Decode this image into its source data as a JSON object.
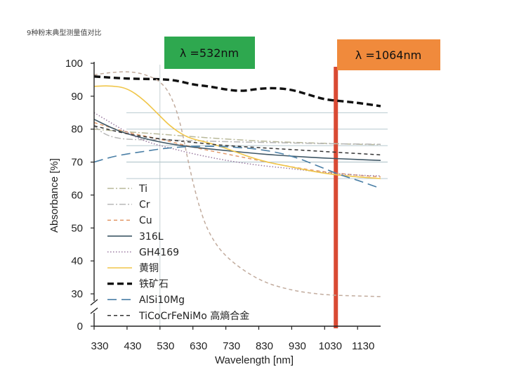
{
  "caption": "9种粉末典型测量值对比",
  "chart_data": {
    "type": "line",
    "xlabel": "Wavelength [nm]",
    "ylabel": "Absorbance [%]",
    "x_ticks": [
      330,
      430,
      530,
      630,
      730,
      830,
      930,
      1030,
      1130
    ],
    "y_ticks": [
      0,
      30,
      40,
      50,
      60,
      70,
      80,
      90,
      100
    ],
    "xlim": [
      330,
      1200
    ],
    "ylim": [
      0,
      100
    ],
    "axis_break": "between 0 and 30",
    "grid_y": [
      65,
      70,
      75,
      80,
      85
    ],
    "grid_x": [
      530
    ],
    "markers": [
      {
        "label": "λ =532nm",
        "wavelength": 532,
        "color": "#2ea84f"
      },
      {
        "label": "λ =1064nm",
        "wavelength": 1064,
        "color": "#d94a34",
        "badge_color": "#f08a3c"
      }
    ],
    "legend_position": "left-bottom",
    "series": [
      {
        "name": "Ti",
        "color": "#b9b99a",
        "style": "dashdot",
        "x": [
          330,
          430,
          530,
          630,
          730,
          830,
          930,
          1030,
          1130,
          1200
        ],
        "y": [
          80,
          79.2,
          78.5,
          77.7,
          77,
          76.4,
          76,
          75.7,
          75.4,
          75.3
        ]
      },
      {
        "name": "Cr",
        "color": "#b7b7b7",
        "style": "dashdot",
        "x": [
          330,
          360,
          400,
          450,
          530,
          630,
          730,
          830,
          930,
          1030,
          1130,
          1200
        ],
        "y": [
          81,
          78.5,
          77.2,
          76.8,
          76.8,
          76.5,
          76.2,
          76,
          75.8,
          75.6,
          75.5,
          75.4
        ]
      },
      {
        "name": "Cu",
        "color": "#e39a6a",
        "style": "dashed",
        "x": [
          330,
          430,
          530,
          630,
          730,
          830,
          930,
          1030,
          1130,
          1200
        ],
        "y": [
          82,
          79,
          77,
          74.5,
          72.5,
          70.5,
          68.5,
          67,
          66,
          65.5
        ]
      },
      {
        "name": "316L",
        "color": "#3f5766",
        "style": "solid",
        "x": [
          330,
          380,
          430,
          530,
          630,
          730,
          830,
          930,
          1030,
          1130,
          1200
        ],
        "y": [
          83,
          80.5,
          78.5,
          76,
          74.5,
          73.5,
          72.5,
          71.8,
          71.2,
          70.8,
          70.5
        ]
      },
      {
        "name": "GH4169",
        "color": "#9a7aa0",
        "style": "dotted",
        "x": [
          330,
          380,
          430,
          480,
          530,
          580,
          630,
          730,
          830,
          930,
          1030,
          1130,
          1200
        ],
        "y": [
          85,
          82,
          79,
          76.5,
          75,
          73.8,
          72.5,
          70.5,
          69,
          68,
          66.8,
          66,
          65.8
        ]
      },
      {
        "name": "黄铜",
        "color": "#f0c64a",
        "style": "solid",
        "x": [
          330,
          380,
          430,
          480,
          530,
          560,
          600,
          630,
          680,
          730,
          830,
          930,
          1030,
          1130,
          1200
        ],
        "y": [
          93,
          93.2,
          92.5,
          89,
          84,
          81,
          78.2,
          77,
          75.8,
          74.2,
          70.5,
          68.5,
          66.5,
          65.5,
          65
        ]
      },
      {
        "name": "铁矿石",
        "color": "#111111",
        "style": "heavy-dashed",
        "x": [
          330,
          430,
          530,
          580,
          630,
          680,
          730,
          780,
          830,
          880,
          930,
          980,
          1030,
          1080,
          1130,
          1200
        ],
        "y": [
          96,
          95.3,
          95.2,
          94.8,
          93.5,
          93,
          92,
          91.5,
          92.3,
          92.5,
          92,
          90.5,
          89,
          88.5,
          88,
          87
        ]
      },
      {
        "name": "AlSi10Mg",
        "color": "#4a7fa6",
        "style": "long-dashed",
        "x": [
          330,
          380,
          430,
          480,
          530,
          580,
          630,
          680,
          730,
          830,
          930,
          1030,
          1080,
          1130,
          1200
        ],
        "y": [
          70,
          71.5,
          72.5,
          73.2,
          74,
          74.5,
          74.8,
          74.8,
          74.7,
          74,
          72,
          68,
          66,
          64.5,
          62
        ]
      },
      {
        "name": "TiCoCrFeNiMo 高熵合金",
        "color": "#333333",
        "style": "dashed",
        "x": [
          330,
          430,
          530,
          630,
          730,
          830,
          930,
          1030,
          1130,
          1200
        ],
        "y": [
          81,
          78.5,
          77,
          76,
          75,
          74.4,
          73.8,
          73.2,
          72.6,
          72.2
        ]
      },
      {
        "name": "",
        "color": "#c2ac9e",
        "style": "dashed",
        "x": [
          330,
          380,
          430,
          470,
          500,
          530,
          560,
          590,
          620,
          650,
          680,
          730,
          830,
          930,
          1030,
          1130,
          1200
        ],
        "y": [
          96.5,
          97.2,
          97.5,
          97,
          96,
          94.5,
          91,
          83,
          68,
          56,
          48,
          41,
          34,
          31,
          29,
          28,
          27.5
        ]
      }
    ]
  }
}
